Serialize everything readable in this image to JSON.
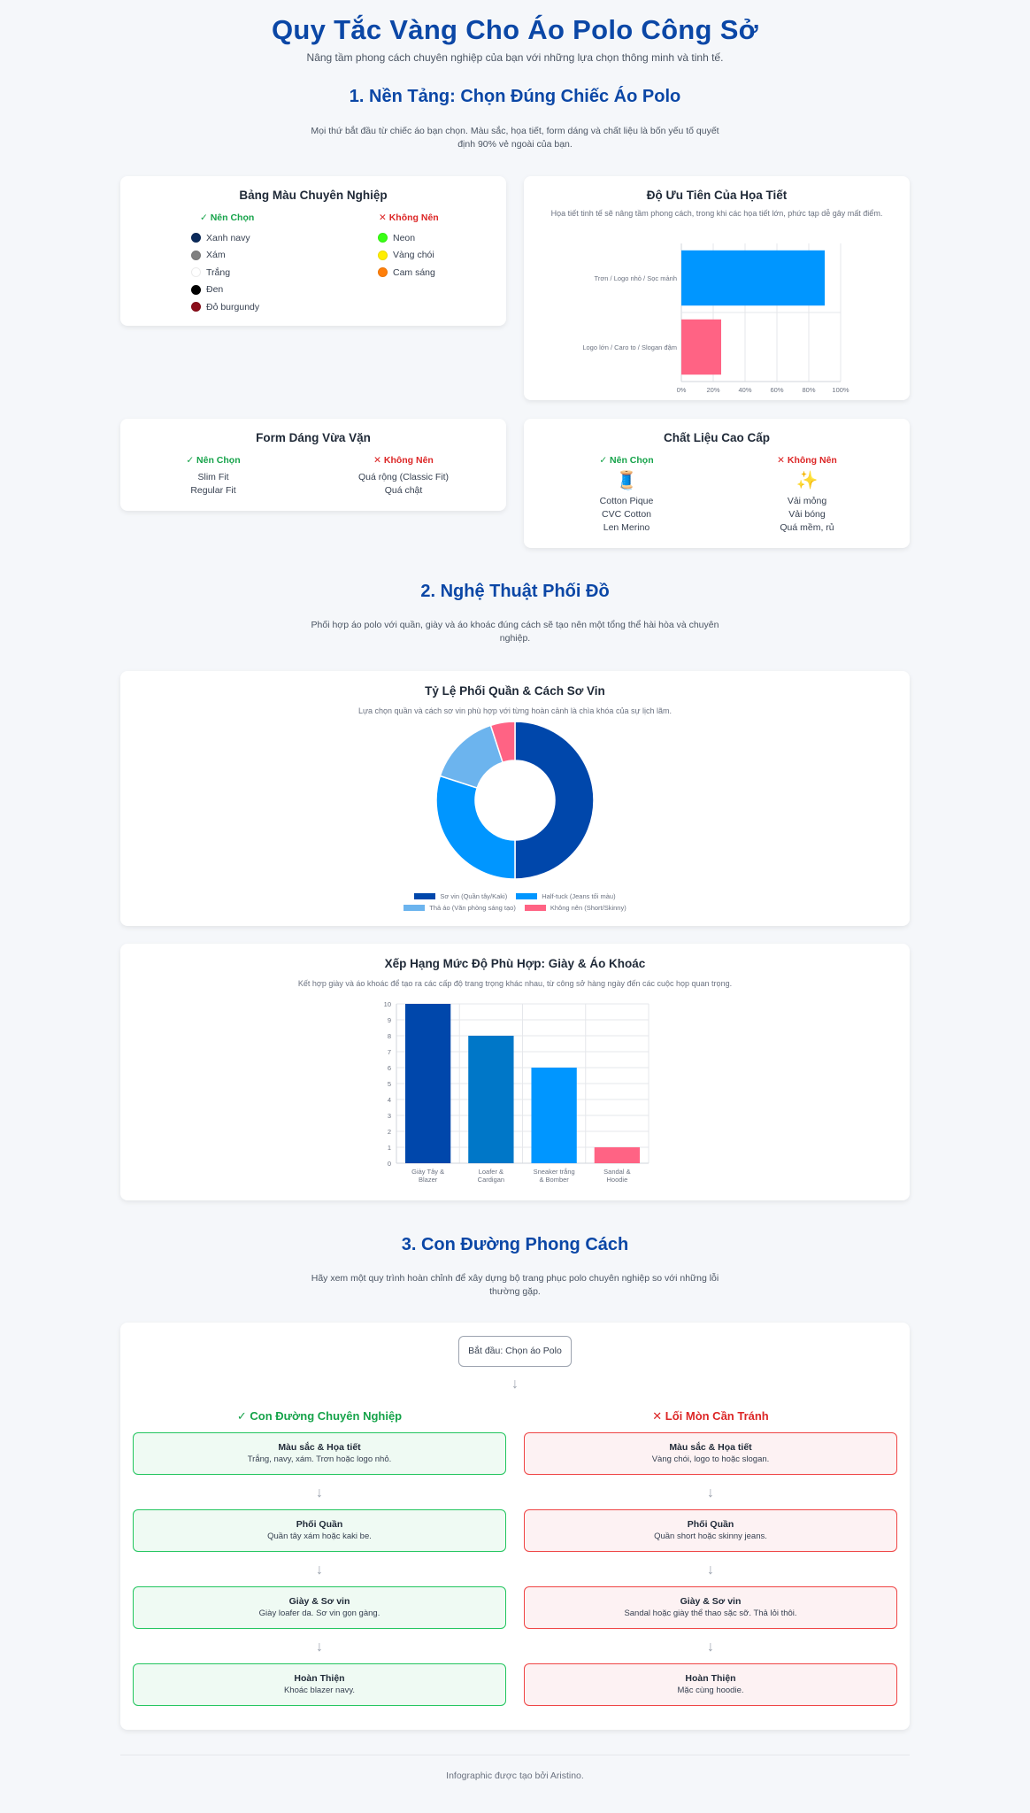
{
  "header": {
    "title": "Quy Tắc Vàng Cho Áo Polo Công Sở",
    "subtitle": "Nâng tầm phong cách chuyên nghiệp của bạn với những lựa chọn thông minh và tinh tế."
  },
  "section1": {
    "title": "1. Nền Tảng: Chọn Đúng Chiếc Áo Polo",
    "desc": "Mọi thứ bắt đầu từ chiếc áo bạn chọn. Màu sắc, họa tiết, form dáng và chất liệu là bốn yếu tố quyết định 90% vẻ ngoài của bạn.",
    "colors_card": {
      "title": "Bảng Màu Chuyên Nghiệp",
      "yes_label": "✓ Nên Chọn",
      "no_label": "✕ Không Nên",
      "yes_items": [
        {
          "name": "Xanh navy",
          "color": "#0b2a5b"
        },
        {
          "name": "Xám",
          "color": "#808080"
        },
        {
          "name": "Trắng",
          "color": "#ffffff"
        },
        {
          "name": "Đen",
          "color": "#000000"
        },
        {
          "name": "Đỏ burgundy",
          "color": "#8b0d1a"
        }
      ],
      "no_items": [
        {
          "name": "Neon",
          "color": "#39ff14"
        },
        {
          "name": "Vàng chói",
          "color": "#ffee00"
        },
        {
          "name": "Cam sáng",
          "color": "#ff7f0a"
        }
      ]
    },
    "pattern_card": {
      "title": "Độ Ưu Tiên Của Họa Tiết",
      "desc": "Họa tiết tinh tế sẽ nâng tầm phong cách, trong khi các họa tiết lớn, phức tạp dễ gây mất điểm."
    },
    "fit_card": {
      "title": "Form Dáng Vừa Vặn",
      "yes_label": "✓ Nên Chọn",
      "no_label": "✕ Không Nên",
      "yes_items": [
        "Slim Fit",
        "Regular Fit"
      ],
      "no_items": [
        "Quá rộng (Classic Fit)",
        "Quá chật"
      ]
    },
    "material_card": {
      "title": "Chất Liệu Cao Cấp",
      "yes_label": "✓ Nên Chọn",
      "no_label": "✕ Không Nên",
      "yes_icon": "🧵",
      "no_icon": "✨",
      "yes_items": [
        "Cotton Pique",
        "CVC Cotton",
        "Len Merino"
      ],
      "no_items": [
        "Vải mỏng",
        "Vải bóng",
        "Quá mềm, rủ"
      ]
    }
  },
  "section2": {
    "title": "2. Nghệ Thuật Phối Đồ",
    "desc": "Phối hợp áo polo với quần, giày và áo khoác đúng cách sẽ tạo nên một tổng thể hài hòa và chuyên nghiệp.",
    "donut_card": {
      "title": "Tỷ Lệ Phối Quần & Cách Sơ Vin",
      "desc": "Lựa chọn quần và cách sơ vin phù hợp với từng hoàn cảnh là chìa khóa của sự lịch lãm."
    },
    "bar_card": {
      "title": "Xếp Hạng Mức Độ Phù Hợp: Giày & Áo Khoác",
      "desc": "Kết hợp giày và áo khoác để tạo ra các cấp độ trang trọng khác nhau, từ công sở hàng ngày đến các cuộc họp quan trọng."
    }
  },
  "section3": {
    "title": "3. Con Đường Phong Cách",
    "desc": "Hãy xem một quy trình hoàn chỉnh để xây dựng bộ trang phục polo chuyên nghiệp so với những lỗi thường gặp.",
    "start": "Bắt đầu: Chọn áo Polo",
    "good_title": "✓ Con Đường Chuyên Nghiệp",
    "bad_title": "✕ Lối Mòn Cần Tránh",
    "good_steps": [
      {
        "title": "Màu sắc & Họa tiết",
        "desc": "Trắng, navy, xám. Trơn hoặc logo nhỏ."
      },
      {
        "title": "Phối Quần",
        "desc": "Quần tây xám hoặc kaki be."
      },
      {
        "title": "Giày & Sơ vin",
        "desc": "Giày loafer da. Sơ vin gọn gàng."
      },
      {
        "title": "Hoàn Thiện",
        "desc": "Khoác blazer navy."
      }
    ],
    "bad_steps": [
      {
        "title": "Màu sắc & Họa tiết",
        "desc": "Vàng chói, logo to hoặc slogan."
      },
      {
        "title": "Phối Quần",
        "desc": "Quần short hoặc skinny jeans."
      },
      {
        "title": "Giày & Sơ vin",
        "desc": "Sandal hoặc giày thể thao sặc sỡ. Thả lỏi thôi."
      },
      {
        "title": "Hoàn Thiện",
        "desc": "Mặc cùng hoodie."
      }
    ]
  },
  "footer": {
    "text": "Infographic được tạo bởi Aristino."
  },
  "chart_data": [
    {
      "type": "bar",
      "orientation": "horizontal",
      "categories": [
        "Trơn / Logo nhỏ / Sọc mảnh",
        "Logo lớn / Caro to / Slogan đậm"
      ],
      "values": [
        90,
        25
      ],
      "colors": [
        "#0096ff",
        "#ff6384"
      ],
      "xticks": [
        "0%",
        "20%",
        "40%",
        "60%",
        "80%",
        "100%"
      ],
      "xlim": [
        0,
        100
      ],
      "grid": true
    },
    {
      "type": "pie",
      "variant": "donut",
      "categories": [
        "Sơ vin (Quần tây/Kaki)",
        "Half-tuck (Jeans tối màu)",
        "Thả áo (Văn phòng sáng tạo)",
        "Không nên (Short/Skinny)"
      ],
      "values": [
        50,
        30,
        15,
        5
      ],
      "colors": [
        "#0047ab",
        "#0096ff",
        "#6cb4ee",
        "#ff6384"
      ],
      "legend": "bottom"
    },
    {
      "type": "bar",
      "categories": [
        "Giày Tây & Blazer",
        "Loafer & Cardigan",
        "Sneaker trắng & Bomber",
        "Sandal & Hoodie"
      ],
      "values": [
        10,
        8,
        6,
        1
      ],
      "colors": [
        "#0047ab",
        "#0077c8",
        "#0096ff",
        "#ff6384"
      ],
      "ylim": [
        0,
        10
      ],
      "yticks": [
        "0",
        "1",
        "2",
        "3",
        "4",
        "5",
        "6",
        "7",
        "8",
        "9",
        "10"
      ],
      "grid": true
    }
  ]
}
